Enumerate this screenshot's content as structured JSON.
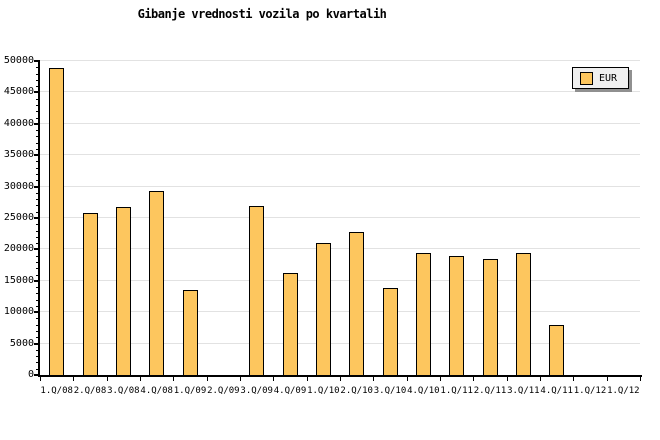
{
  "title": "Gibanje vrednosti vozila po kvartalih",
  "legend": {
    "label": "EUR"
  },
  "colors": {
    "bar_fill": "#FDC65E",
    "bar_border": "#000000",
    "gridline": "#E2E2E2",
    "axis": "#000000",
    "legend_bg": "#EFEFEF",
    "legend_shadow": "#909090",
    "text": "#000000",
    "background": "#FFFFFF"
  },
  "chart_data": {
    "type": "bar",
    "title": "Gibanje vrednosti vozila po kvartalih",
    "series_name": "EUR",
    "categories": [
      "1.Q/08",
      "2.Q/08",
      "3.Q/08",
      "4.Q/08",
      "1.Q/09",
      "2.Q/09",
      "3.Q/09",
      "4.Q/09",
      "1.Q/10",
      "2.Q/10",
      "3.Q/10",
      "4.Q/10",
      "1.Q/11",
      "2.Q/11",
      "3.Q/11",
      "4.Q/11",
      "1.Q/12",
      "1.Q/12"
    ],
    "values": [
      48900,
      25800,
      26700,
      29300,
      13600,
      0,
      26900,
      16200,
      21100,
      22700,
      13900,
      19500,
      18900,
      18500,
      19400,
      7900,
      0,
      0
    ],
    "xlabel": "",
    "ylabel": "",
    "ylim": [
      0,
      50000
    ],
    "y_tick_step": 5000,
    "y_minor_tick_step": 1000,
    "y_tick_labels": [
      "0",
      "5000",
      "10000",
      "15000",
      "20000",
      "25000",
      "30000",
      "35000",
      "40000",
      "45000",
      "50000"
    ],
    "grid": "horizontal-major",
    "legend_position": "top-right"
  }
}
